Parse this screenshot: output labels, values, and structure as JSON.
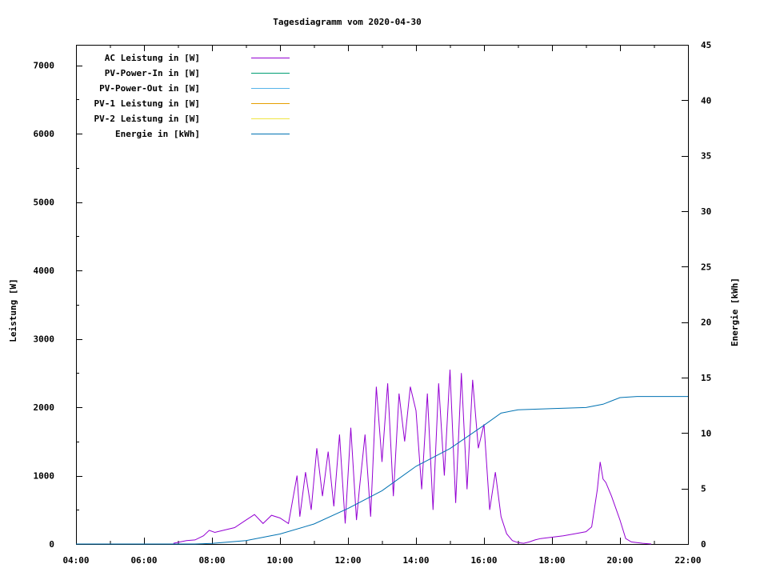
{
  "chart_data": {
    "type": "line",
    "title": "Tagesdiagramm vom 2020-04-30",
    "xlabel": "",
    "ylabel": "Leistung [W]",
    "y2label": "Energie [kWh]",
    "xlim": [
      "04:00",
      "22:00"
    ],
    "ylim": [
      0,
      7300
    ],
    "y2lim": [
      0,
      45
    ],
    "xticks": [
      "04:00",
      "06:00",
      "08:00",
      "10:00",
      "12:00",
      "14:00",
      "16:00",
      "18:00",
      "20:00",
      "22:00"
    ],
    "yticks": [
      0,
      1000,
      2000,
      3000,
      4000,
      5000,
      6000,
      7000
    ],
    "y2ticks": [
      0,
      5,
      10,
      15,
      20,
      25,
      30,
      35,
      40,
      45
    ],
    "grid": false,
    "legend_position": "top-left",
    "legend": [
      {
        "label": "AC Leistung in [W]",
        "color": "#9400d3"
      },
      {
        "label": "PV-Power-In in [W]",
        "color": "#009e73"
      },
      {
        "label": "PV-Power-Out in [W]",
        "color": "#56b4e9"
      },
      {
        "label": "PV-1 Leistung in [W]",
        "color": "#e69f00"
      },
      {
        "label": "PV-2 Leistung in [W]",
        "color": "#f0e442"
      },
      {
        "label": "Energie in [kWh]",
        "color": "#0072b2"
      }
    ],
    "series": [
      {
        "name": "AC Leistung in [W]",
        "axis": "y",
        "color": "#9400d3",
        "x": [
          "06:52",
          "07:15",
          "07:30",
          "07:45",
          "07:55",
          "08:05",
          "08:20",
          "08:40",
          "09:00",
          "09:15",
          "09:30",
          "09:45",
          "10:00",
          "10:15",
          "10:30",
          "10:35",
          "10:45",
          "10:55",
          "11:05",
          "11:15",
          "11:25",
          "11:35",
          "11:45",
          "11:55",
          "12:05",
          "12:15",
          "12:20",
          "12:30",
          "12:40",
          "12:50",
          "13:00",
          "13:10",
          "13:20",
          "13:30",
          "13:40",
          "13:50",
          "14:00",
          "14:10",
          "14:20",
          "14:30",
          "14:40",
          "14:50",
          "15:00",
          "15:10",
          "15:20",
          "15:30",
          "15:40",
          "15:50",
          "16:00",
          "16:10",
          "16:20",
          "16:30",
          "16:40",
          "16:50",
          "17:00",
          "17:10",
          "17:20",
          "17:30",
          "17:40",
          "18:00",
          "18:20",
          "18:40",
          "19:00",
          "19:10",
          "19:20",
          "19:25",
          "19:30",
          "19:35",
          "19:45",
          "20:00",
          "20:10",
          "20:20",
          "20:40",
          "20:55"
        ],
        "values": [
          10,
          50,
          60,
          120,
          200,
          170,
          200,
          240,
          350,
          430,
          300,
          420,
          380,
          300,
          1000,
          400,
          1050,
          500,
          1400,
          700,
          1350,
          550,
          1600,
          300,
          1700,
          350,
          800,
          1600,
          400,
          2300,
          1200,
          2350,
          700,
          2200,
          1500,
          2300,
          1950,
          800,
          2200,
          500,
          2350,
          1000,
          2550,
          600,
          2500,
          800,
          2400,
          1400,
          1750,
          500,
          1050,
          400,
          150,
          50,
          20,
          10,
          30,
          60,
          80,
          100,
          120,
          150,
          180,
          250,
          800,
          1200,
          950,
          900,
          700,
          350,
          80,
          30,
          10,
          0
        ]
      },
      {
        "name": "Energie in [kWh]",
        "axis": "y2",
        "color": "#0072b2",
        "x": [
          "04:00",
          "07:30",
          "08:00",
          "09:00",
          "10:00",
          "11:00",
          "12:00",
          "13:00",
          "14:00",
          "15:00",
          "16:00",
          "16:30",
          "17:00",
          "18:00",
          "19:00",
          "19:30",
          "20:00",
          "20:30",
          "21:00",
          "22:00"
        ],
        "values": [
          0,
          0,
          0.05,
          0.3,
          0.9,
          1.8,
          3.2,
          4.8,
          7,
          8.6,
          10.7,
          11.8,
          12.1,
          12.2,
          12.3,
          12.6,
          13.2,
          13.3,
          13.3,
          13.3
        ]
      },
      {
        "name": "PV-Power-In in [W]",
        "axis": "y",
        "color": "#009e73",
        "x": [],
        "values": []
      },
      {
        "name": "PV-Power-Out in [W]",
        "axis": "y",
        "color": "#56b4e9",
        "x": [],
        "values": []
      },
      {
        "name": "PV-1 Leistung in [W]",
        "axis": "y",
        "color": "#e69f00",
        "x": [],
        "values": []
      },
      {
        "name": "PV-2 Leistung in [W]",
        "axis": "y",
        "color": "#f0e442",
        "x": [],
        "values": []
      }
    ]
  }
}
